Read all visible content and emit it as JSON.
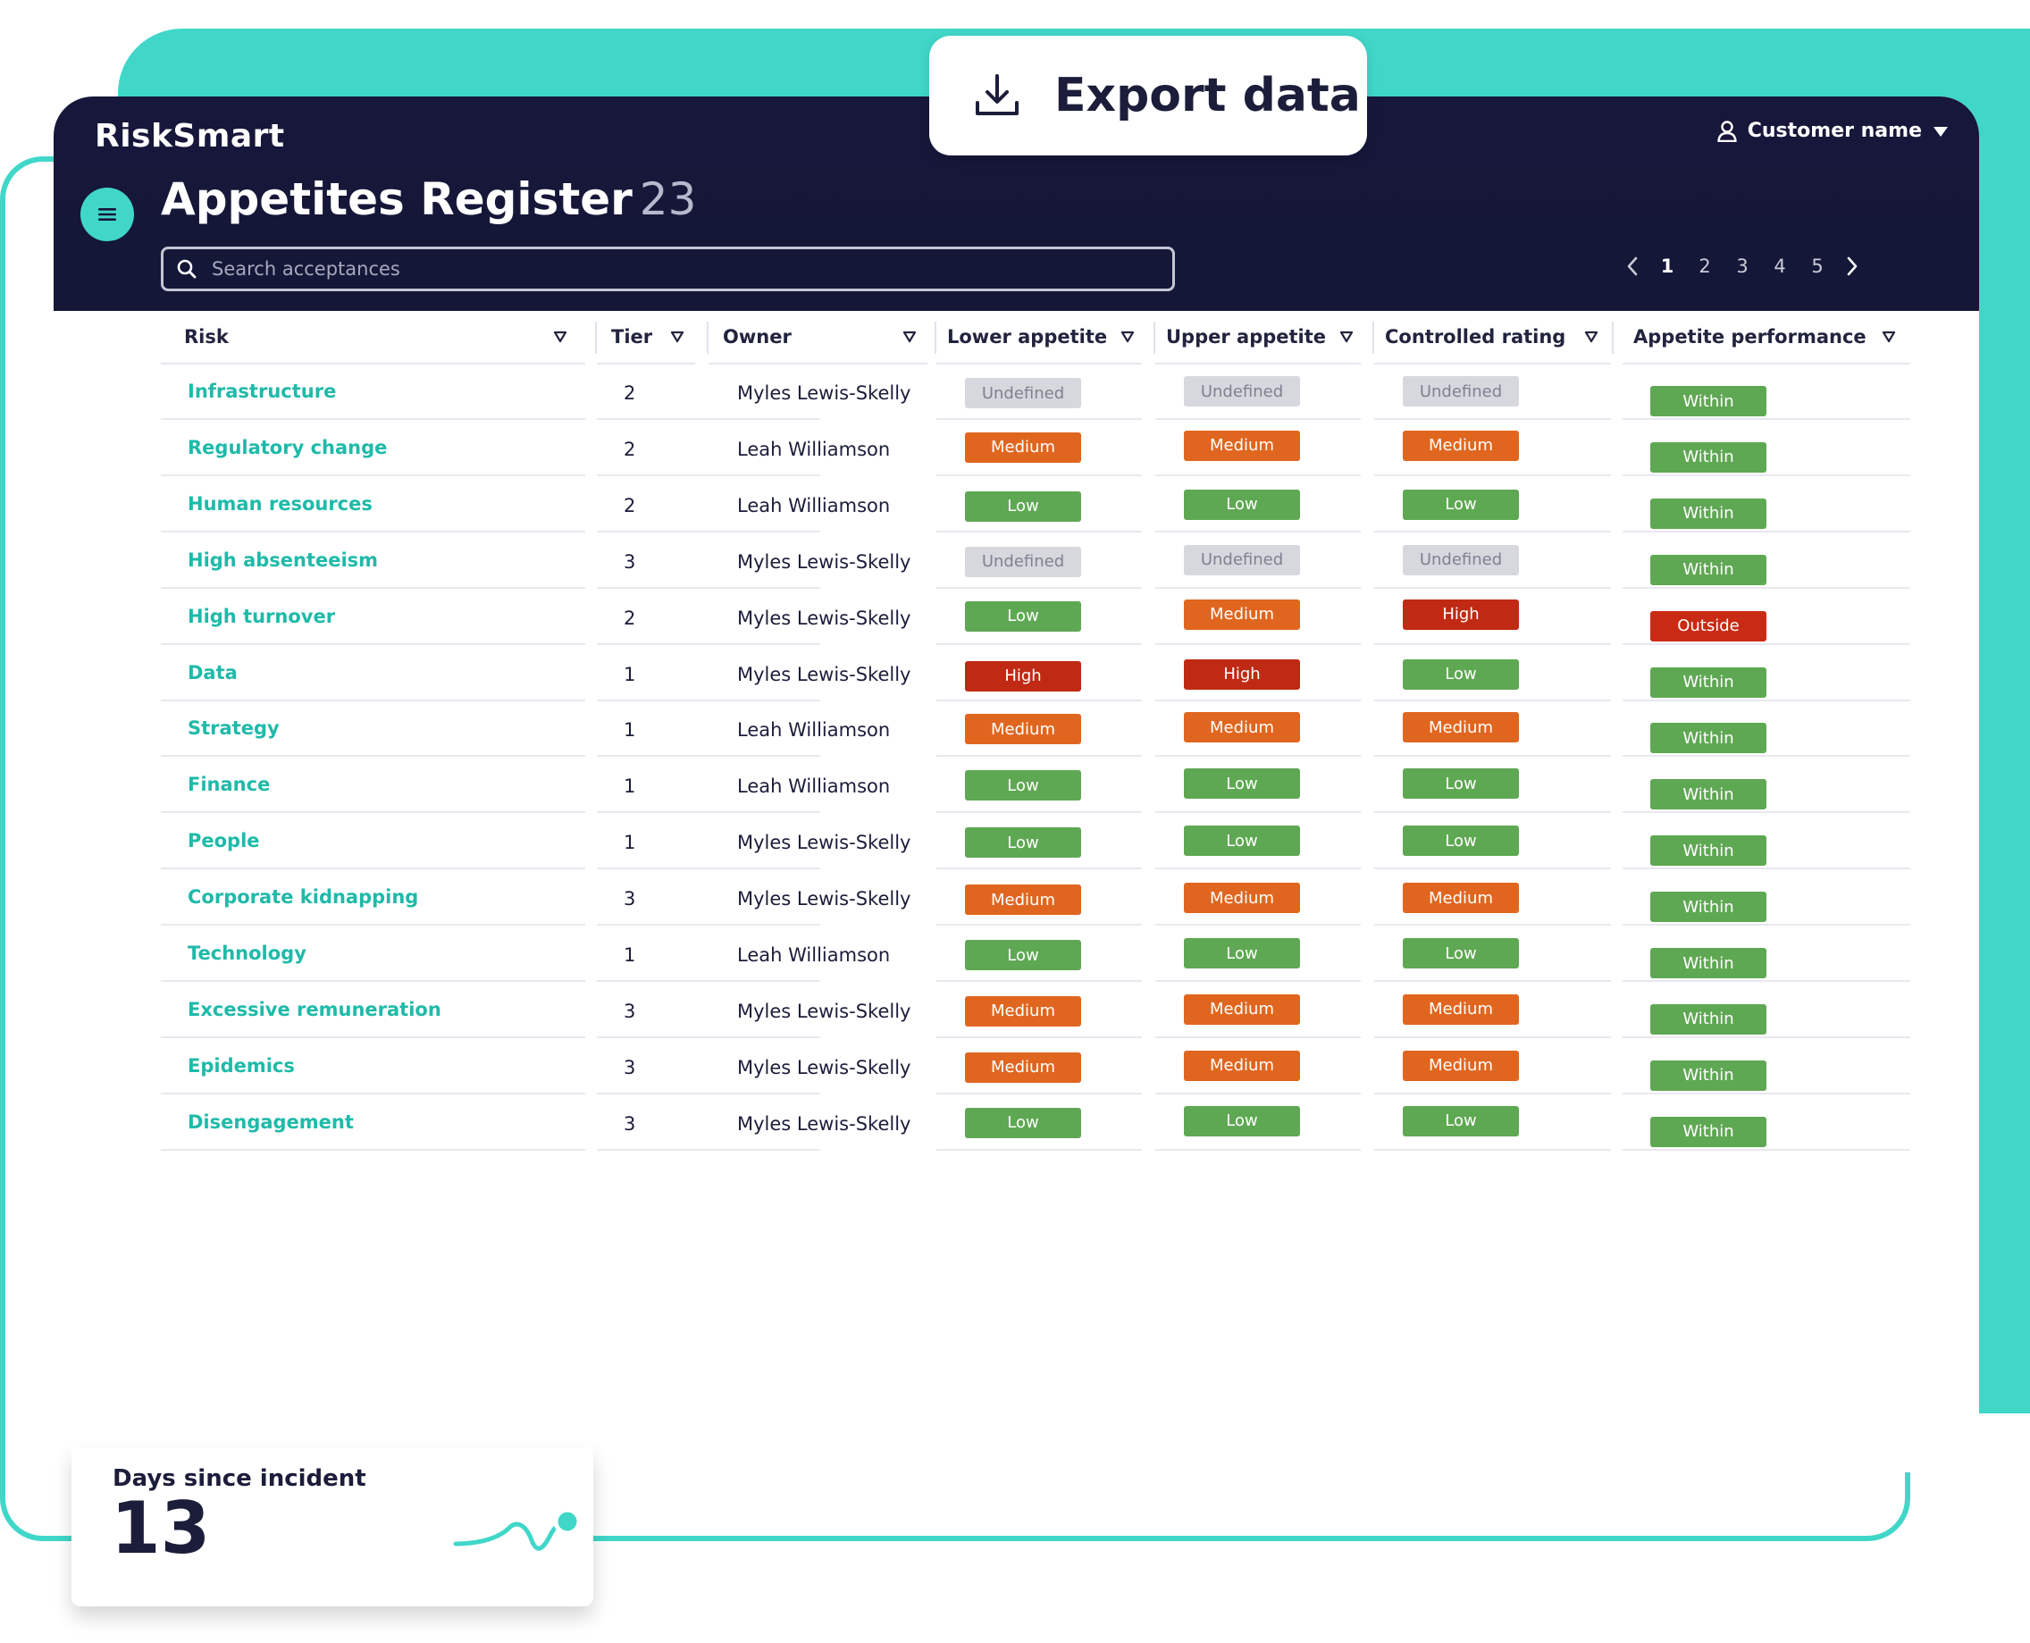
{
  "app": {
    "logo": "RiskSmart",
    "user": "Customer name"
  },
  "page": {
    "title": "Appetites Register",
    "count": "23"
  },
  "search": {
    "placeholder": "Search acceptances"
  },
  "pagination": {
    "pages": [
      "1",
      "2",
      "3",
      "4",
      "5"
    ],
    "current": "1"
  },
  "export": {
    "label": "Export data"
  },
  "table": {
    "columns": [
      "Risk",
      "Tier",
      "Owner",
      "Lower appetite",
      "Upper appetite",
      "Controlled rating",
      "Appetite performance"
    ],
    "rows": [
      {
        "risk": "Infrastructure",
        "tier": "2",
        "owner": "Myles Lewis-Skelly",
        "lower": "Undefined",
        "upper": "Undefined",
        "controlled": "Undefined",
        "performance": "Within"
      },
      {
        "risk": "Regulatory change",
        "tier": "2",
        "owner": "Leah Williamson",
        "lower": "Medium",
        "upper": "Medium",
        "controlled": "Medium",
        "performance": "Within"
      },
      {
        "risk": "Human resources",
        "tier": "2",
        "owner": "Leah Williamson",
        "lower": "Low",
        "upper": "Low",
        "controlled": "Low",
        "performance": "Within"
      },
      {
        "risk": "High absenteeism",
        "tier": "3",
        "owner": "Myles Lewis-Skelly",
        "lower": "Undefined",
        "upper": "Undefined",
        "controlled": "Undefined",
        "performance": "Within"
      },
      {
        "risk": "High turnover",
        "tier": "2",
        "owner": "Myles Lewis-Skelly",
        "lower": "Low",
        "upper": "Medium",
        "controlled": "High",
        "performance": "Outside"
      },
      {
        "risk": "Data",
        "tier": "1",
        "owner": "Myles Lewis-Skelly",
        "lower": "High",
        "upper": "High",
        "controlled": "Low",
        "performance": "Within"
      },
      {
        "risk": "Strategy",
        "tier": "1",
        "owner": "Leah Williamson",
        "lower": "Medium",
        "upper": "Medium",
        "controlled": "Medium",
        "performance": "Within"
      },
      {
        "risk": "Finance",
        "tier": "1",
        "owner": "Leah Williamson",
        "lower": "Low",
        "upper": "Low",
        "controlled": "Low",
        "performance": "Within"
      },
      {
        "risk": "People",
        "tier": "1",
        "owner": "Myles Lewis-Skelly",
        "lower": "Low",
        "upper": "Low",
        "controlled": "Low",
        "performance": "Within"
      },
      {
        "risk": "Corporate kidnapping",
        "tier": "3",
        "owner": "Myles Lewis-Skelly",
        "lower": "Medium",
        "upper": "Medium",
        "controlled": "Medium",
        "performance": "Within"
      },
      {
        "risk": "Technology",
        "tier": "1",
        "owner": "Leah Williamson",
        "lower": "Low",
        "upper": "Low",
        "controlled": "Low",
        "performance": "Within"
      },
      {
        "risk": "Excessive remuneration",
        "tier": "3",
        "owner": "Myles Lewis-Skelly",
        "lower": "Medium",
        "upper": "Medium",
        "controlled": "Medium",
        "performance": "Within"
      },
      {
        "risk": "Epidemics",
        "tier": "3",
        "owner": "Myles Lewis-Skelly",
        "lower": "Medium",
        "upper": "Medium",
        "controlled": "Medium",
        "performance": "Within"
      },
      {
        "risk": "Disengagement",
        "tier": "3",
        "owner": "Myles Lewis-Skelly",
        "lower": "Low",
        "upper": "Low",
        "controlled": "Low",
        "performance": "Within"
      }
    ]
  },
  "incident": {
    "title": "Days since incident",
    "value": "13"
  },
  "colors": {
    "teal": "#40d7c9",
    "header": "#17173b",
    "low": "#5fa853",
    "medium": "#e0661f",
    "high": "#c02a14",
    "undefined": "#d7d8de"
  },
  "icons": {
    "export": "download-icon",
    "user": "user-icon",
    "menu": "hamburger-icon",
    "search": "search-icon"
  }
}
